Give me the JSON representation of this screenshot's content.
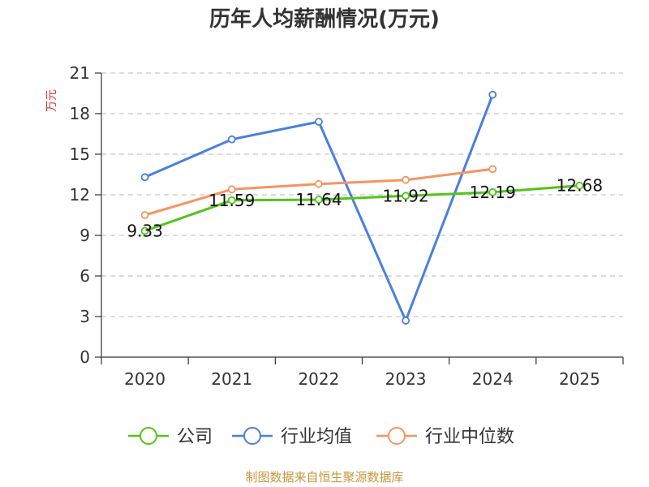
{
  "chart_data": {
    "type": "line",
    "title": "历年人均薪酬情况(万元)",
    "ylabel": "万元",
    "xlabel": "",
    "categories": [
      "2020",
      "2021",
      "2022",
      "2023",
      "2024",
      "2025"
    ],
    "ylim": [
      0,
      21
    ],
    "yticks": [
      0,
      3,
      6,
      9,
      12,
      15,
      18,
      21
    ],
    "grid": true,
    "legend_position": "bottom",
    "series": [
      {
        "name": "公司",
        "color": "#52c41a",
        "values": [
          9.33,
          11.59,
          11.64,
          11.92,
          12.19,
          12.68
        ],
        "labels": [
          "9.33",
          "11.59",
          "11.64",
          "11.92",
          "12.19",
          "12.68"
        ]
      },
      {
        "name": "行业均值",
        "color": "#4a7fdc",
        "values": [
          13.3,
          16.1,
          17.4,
          2.7,
          19.4,
          null
        ]
      },
      {
        "name": "行业中位数",
        "color": "#f59461",
        "values": [
          10.5,
          12.4,
          12.8,
          13.1,
          13.9,
          null
        ]
      }
    ]
  },
  "footer": {
    "source": "制图数据来自恒生聚源数据库"
  }
}
